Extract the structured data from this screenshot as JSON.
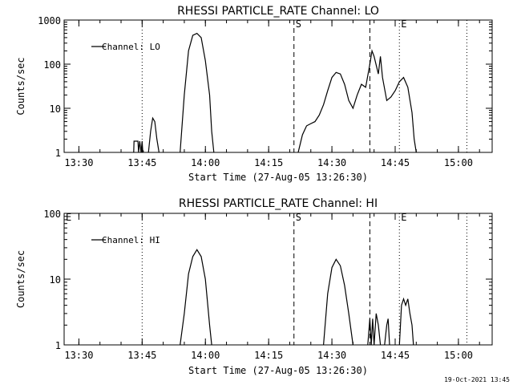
{
  "footer": "19-Oct-2021 13:45",
  "chart_data": [
    {
      "type": "line",
      "title": "RHESSI PARTICLE_RATE Channel: LO",
      "xlabel": "Start Time (27-Aug-05 13:26:30)",
      "ylabel": "Counts/sec",
      "y_scale": "log",
      "ylim": [
        1,
        1000
      ],
      "xlim": [
        "13:26:30",
        "15:08:00"
      ],
      "x_ticks": [
        "13:30",
        "13:45",
        "14:00",
        "14:15",
        "14:30",
        "14:45",
        "15:00"
      ],
      "y_ticks": [
        "1",
        "10",
        "100",
        "1000"
      ],
      "legend": {
        "position": "top-left",
        "entries": [
          "Channel: LO"
        ]
      },
      "event_markers": [
        {
          "time": "13:45:00",
          "style": "dotted",
          "label": ""
        },
        {
          "time": "14:21:00",
          "style": "dashed",
          "label": "S"
        },
        {
          "time": "14:39:00",
          "style": "dashed",
          "label": ""
        },
        {
          "time": "14:46:00",
          "style": "dotted",
          "label": "E"
        },
        {
          "time": "15:02:00",
          "style": "dotted",
          "label": ""
        }
      ],
      "series": [
        {
          "name": "Channel: LO",
          "segments": [
            {
              "x": [
                "13:43:00",
                "13:43:05",
                "13:44:00",
                "13:44:10",
                "13:44:25",
                "13:44:45",
                "13:45:00",
                "13:45:10",
                "13:45:20"
              ],
              "y": [
                1,
                1.8,
                1.8,
                1,
                1.8,
                1,
                1.8,
                1,
                1.1
              ]
            },
            {
              "x": [
                "13:46:30",
                "13:47:00",
                "13:47:30",
                "13:48:00",
                "13:48:30",
                "13:49:00"
              ],
              "y": [
                1,
                3,
                6,
                5,
                2,
                1
              ]
            },
            {
              "x": [
                "13:54:00",
                "13:55:00",
                "13:56:00",
                "13:57:00",
                "13:58:00",
                "13:59:00",
                "14:00:00",
                "14:01:00",
                "14:01:30",
                "14:02:00"
              ],
              "y": [
                1,
                20,
                200,
                450,
                500,
                400,
                120,
                20,
                3,
                1
              ]
            },
            {
              "x": [
                "14:22:00",
                "14:23:00",
                "14:24:00",
                "14:25:00",
                "14:26:00",
                "14:27:00",
                "14:28:00",
                "14:29:00",
                "14:30:00",
                "14:31:00",
                "14:32:00",
                "14:33:00",
                "14:34:00",
                "14:35:00",
                "14:36:00",
                "14:37:00",
                "14:38:00",
                "14:39:00",
                "14:39:30",
                "14:40:00",
                "14:41:00",
                "14:41:30",
                "14:42:00",
                "14:43:00",
                "14:44:00",
                "14:45:00",
                "14:46:00",
                "14:47:00",
                "14:48:00",
                "14:49:00",
                "14:49:30",
                "14:50:00"
              ],
              "y": [
                1,
                2.5,
                4,
                4.5,
                5,
                7,
                12,
                25,
                50,
                65,
                60,
                35,
                15,
                10,
                20,
                35,
                30,
                100,
                200,
                150,
                60,
                150,
                50,
                15,
                18,
                25,
                40,
                50,
                30,
                8,
                2,
                1
              ]
            }
          ]
        }
      ]
    },
    {
      "type": "line",
      "title": "RHESSI PARTICLE_RATE Channel: HI",
      "xlabel": "Start Time (27-Aug-05 13:26:30)",
      "ylabel": "Counts/sec",
      "y_scale": "log",
      "ylim": [
        1,
        100
      ],
      "xlim": [
        "13:26:30",
        "15:08:00"
      ],
      "x_ticks": [
        "13:30",
        "13:45",
        "14:00",
        "14:15",
        "14:30",
        "14:45",
        "15:00"
      ],
      "y_ticks": [
        "1",
        "10",
        "100"
      ],
      "legend": {
        "position": "top-left",
        "entries": [
          "Channel: HI"
        ]
      },
      "event_markers": [
        {
          "time": "13:45:00",
          "style": "dotted",
          "label": ""
        },
        {
          "time": "14:21:00",
          "style": "dashed",
          "label": "S"
        },
        {
          "time": "14:39:00",
          "style": "dashed",
          "label": ""
        },
        {
          "time": "14:46:00",
          "style": "dotted",
          "label": "E"
        },
        {
          "time": "15:02:00",
          "style": "dotted",
          "label": ""
        }
      ],
      "corner_label": "E",
      "series": [
        {
          "name": "Channel: HI",
          "segments": [
            {
              "x": [
                "13:54:00",
                "13:55:00",
                "13:56:00",
                "13:57:00",
                "13:58:00",
                "13:59:00",
                "14:00:00",
                "14:01:00",
                "14:01:30"
              ],
              "y": [
                1,
                3,
                12,
                22,
                28,
                22,
                10,
                2,
                1
              ]
            },
            {
              "x": [
                "14:28:00",
                "14:29:00",
                "14:30:00",
                "14:31:00",
                "14:32:00",
                "14:33:00",
                "14:34:00",
                "14:35:00"
              ],
              "y": [
                1,
                6,
                15,
                20,
                16,
                8,
                3,
                1
              ]
            },
            {
              "x": [
                "14:38:30",
                "14:39:00",
                "14:39:20",
                "14:39:40",
                "14:40:00",
                "14:40:30",
                "14:41:00",
                "14:41:30"
              ],
              "y": [
                1,
                2.5,
                1,
                2.5,
                1,
                3,
                2,
                1
              ]
            },
            {
              "x": [
                "14:42:30",
                "14:43:00",
                "14:43:20",
                "14:43:40"
              ],
              "y": [
                1,
                2,
                2.5,
                1
              ]
            },
            {
              "x": [
                "14:46:00",
                "14:46:30",
                "14:47:00",
                "14:47:30",
                "14:48:00",
                "14:48:30",
                "14:49:00",
                "14:49:20"
              ],
              "y": [
                1,
                4,
                5,
                4,
                5,
                3,
                2,
                1
              ]
            }
          ]
        }
      ]
    }
  ]
}
